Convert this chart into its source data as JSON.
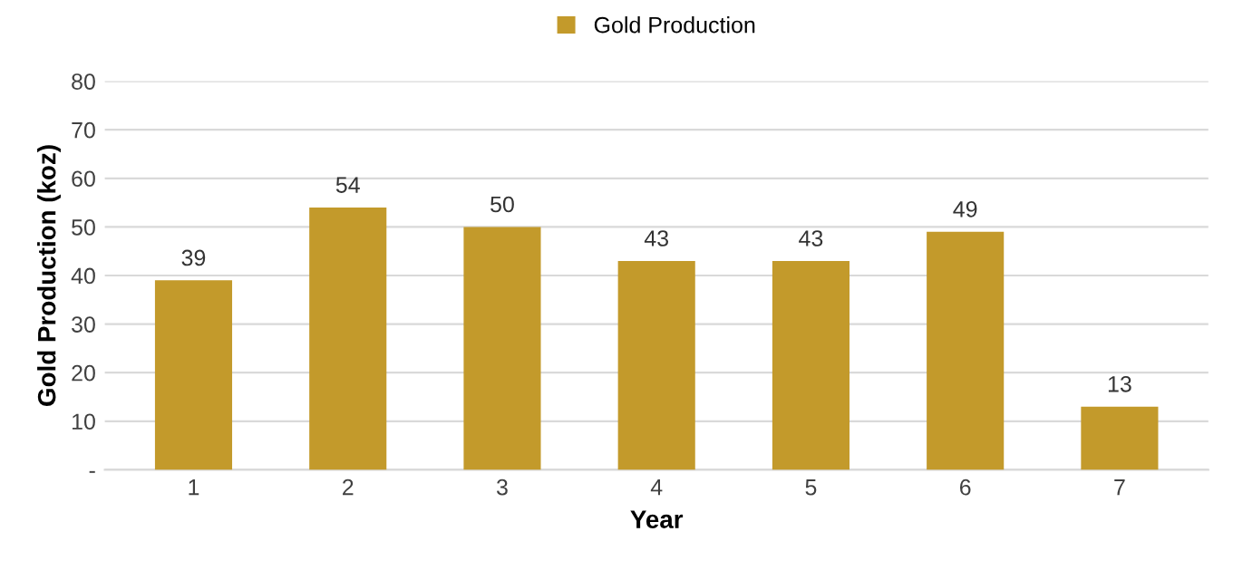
{
  "chart_data": {
    "type": "bar",
    "xlabel": "Year",
    "ylabel": "Gold Production (koz)",
    "categories": [
      "1",
      "2",
      "3",
      "4",
      "5",
      "6",
      "7"
    ],
    "series": [
      {
        "name": "Gold Production",
        "color": "#c39a2b",
        "values": [
          39,
          54,
          50,
          43,
          43,
          49,
          13
        ]
      }
    ],
    "ylim": [
      0,
      80
    ],
    "yticks": [
      {
        "value": 0,
        "label": "-"
      },
      10,
      20,
      30,
      40,
      50,
      60,
      70,
      80
    ],
    "grid": "y",
    "legend": "top",
    "data_labels": true
  }
}
